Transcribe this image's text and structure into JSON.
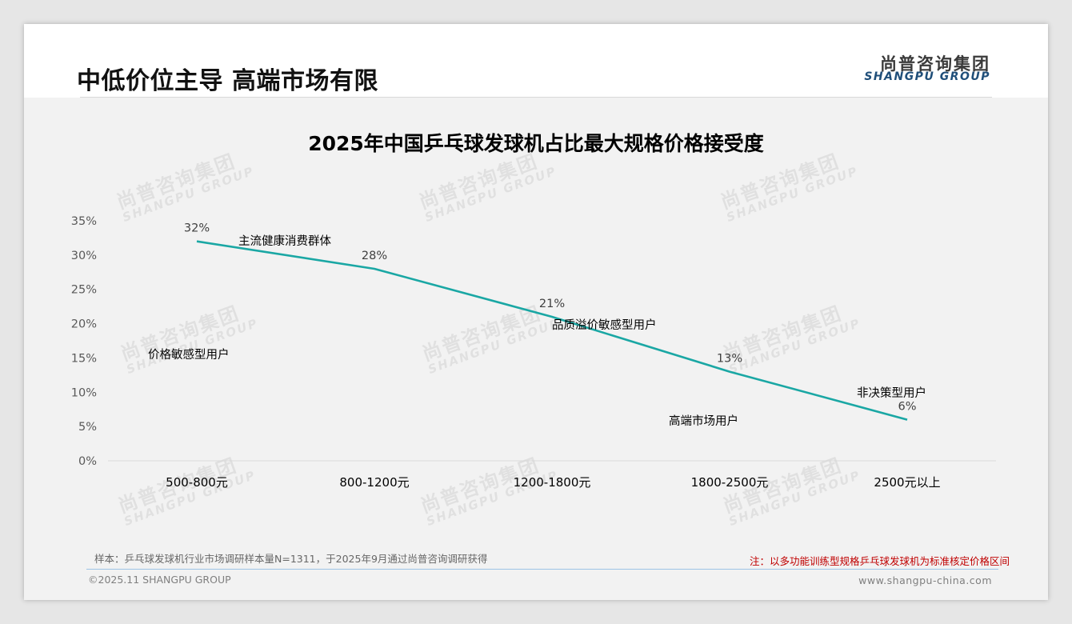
{
  "header": {
    "title": "中低价位主导 高端市场有限",
    "logo_cn": "尚普咨询集团",
    "logo_en": "SHANGPU GROUP"
  },
  "watermark": {
    "cn": "尚普咨询集团",
    "en": "SHANGPU GROUP"
  },
  "chart_data": {
    "type": "line",
    "title": "2025年中国乒乓球发球机占比最大规格价格接受度",
    "categories": [
      "500-800元",
      "800-1200元",
      "1200-1800元",
      "1800-2500元",
      "2500元以上"
    ],
    "values": [
      32,
      28,
      21,
      13,
      6
    ],
    "value_labels": [
      "32%",
      "28%",
      "21%",
      "13%",
      "6%"
    ],
    "y_ticks": [
      "0%",
      "5%",
      "10%",
      "15%",
      "20%",
      "25%",
      "30%",
      "35%"
    ],
    "ylim": [
      0,
      35
    ],
    "line_color": "#1aa7a4",
    "grid": false,
    "annotations": [
      "价格敏感型用户",
      "主流健康消费群体",
      "品质溢价敏感型用户",
      "高端市场用户",
      "非决策型用户"
    ]
  },
  "footer": {
    "sample": "样本：乒乓球发球机行业市场调研样本量N=1311，于2025年9月通过尚普咨询调研获得",
    "note": "注：以多功能训练型规格乒乓球发球机为标准核定价格区间",
    "copyright": "©2025.11 SHANGPU GROUP",
    "website": "www.shangpu-china.com"
  }
}
